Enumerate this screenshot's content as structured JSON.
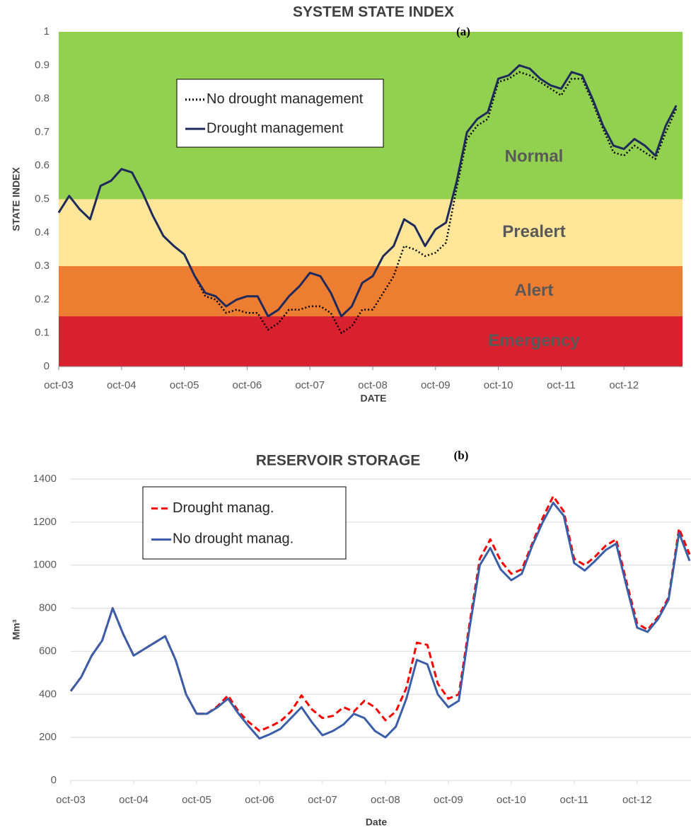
{
  "chart_data": [
    {
      "type": "line",
      "title": "SYSTEM STATE INDEX",
      "annotation": "(a)",
      "x_label": "DATE",
      "y_label": "STATE INDEX",
      "categories": [
        "oct-03",
        null,
        null,
        null,
        null,
        null,
        "oct-04",
        null,
        null,
        null,
        null,
        null,
        "oct-05",
        null,
        null,
        null,
        null,
        null,
        "oct-06",
        null,
        null,
        null,
        null,
        null,
        "oct-07",
        null,
        null,
        null,
        null,
        null,
        "oct-08",
        null,
        null,
        null,
        null,
        null,
        "oct-09",
        null,
        null,
        null,
        null,
        null,
        "oct-10",
        null,
        null,
        null,
        null,
        null,
        "oct-11",
        null,
        null,
        null,
        null,
        null,
        "oct-12",
        null,
        null,
        null,
        null,
        null
      ],
      "ylim": [
        0,
        1
      ],
      "yticks": [
        0,
        0.1,
        0.2,
        0.3,
        0.4,
        0.5,
        0.6,
        0.7,
        0.8,
        0.9,
        1
      ],
      "grid": false,
      "bands": [
        {
          "label": "Normal",
          "from": 0.5,
          "to": 1,
          "color": "#92d050"
        },
        {
          "label": "Prealert",
          "from": 0.3,
          "to": 0.5,
          "color": "#ffe699"
        },
        {
          "label": "Alert",
          "from": 0.15,
          "to": 0.3,
          "color": "#ed7d31"
        },
        {
          "label": "Emergency",
          "from": 0,
          "to": 0.15,
          "color": "#d9202f"
        }
      ],
      "series": [
        {
          "name": "No drought management",
          "color": "#000000",
          "line_style": "dotted",
          "values": [
            0.46,
            0.51,
            0.47,
            0.44,
            0.54,
            0.555,
            0.59,
            0.58,
            0.52,
            0.45,
            0.39,
            0.36,
            0.335,
            0.27,
            0.21,
            0.2,
            0.16,
            0.17,
            0.16,
            0.16,
            0.11,
            0.13,
            0.17,
            0.17,
            0.18,
            0.18,
            0.16,
            0.1,
            0.12,
            0.17,
            0.17,
            0.22,
            0.27,
            0.36,
            0.35,
            0.33,
            0.34,
            0.37,
            0.53,
            0.68,
            0.72,
            0.74,
            0.85,
            0.86,
            0.88,
            0.87,
            0.85,
            0.83,
            0.81,
            0.86,
            0.86,
            0.79,
            0.71,
            0.64,
            0.63,
            0.66,
            0.64,
            0.62,
            0.7,
            0.77
          ]
        },
        {
          "name": "Drought management",
          "color": "#1f2a5c",
          "line_style": "solid",
          "values": [
            0.46,
            0.51,
            0.47,
            0.44,
            0.54,
            0.555,
            0.59,
            0.58,
            0.52,
            0.45,
            0.39,
            0.36,
            0.335,
            0.27,
            0.22,
            0.21,
            0.18,
            0.2,
            0.21,
            0.21,
            0.15,
            0.17,
            0.21,
            0.24,
            0.28,
            0.27,
            0.22,
            0.15,
            0.18,
            0.25,
            0.27,
            0.33,
            0.36,
            0.44,
            0.42,
            0.36,
            0.41,
            0.43,
            0.55,
            0.7,
            0.74,
            0.76,
            0.86,
            0.87,
            0.9,
            0.89,
            0.86,
            0.84,
            0.83,
            0.88,
            0.87,
            0.8,
            0.72,
            0.66,
            0.65,
            0.68,
            0.66,
            0.63,
            0.72,
            0.78
          ]
        }
      ]
    },
    {
      "type": "line",
      "title": "RESERVOIR STORAGE",
      "annotation": "(b)",
      "x_label": "Date",
      "y_label": "Mm³",
      "categories": [
        "oct-03",
        null,
        null,
        null,
        null,
        null,
        "oct-04",
        null,
        null,
        null,
        null,
        null,
        "oct-05",
        null,
        null,
        null,
        null,
        null,
        "oct-06",
        null,
        null,
        null,
        null,
        null,
        "oct-07",
        null,
        null,
        null,
        null,
        null,
        "oct-08",
        null,
        null,
        null,
        null,
        null,
        "oct-09",
        null,
        null,
        null,
        null,
        null,
        "oct-10",
        null,
        null,
        null,
        null,
        null,
        "oct-11",
        null,
        null,
        null,
        null,
        null,
        "oct-12",
        null,
        null,
        null,
        null,
        null
      ],
      "ylim": [
        0,
        1400
      ],
      "yticks": [
        0,
        200,
        400,
        600,
        800,
        1000,
        1200,
        1400
      ],
      "grid": true,
      "series": [
        {
          "name": "Drought manag.",
          "color": "#ff0000",
          "line_style": "dashed",
          "values": [
            415,
            480,
            580,
            650,
            800,
            680,
            580,
            610,
            640,
            670,
            560,
            400,
            310,
            310,
            345,
            395,
            320,
            270,
            230,
            250,
            275,
            320,
            395,
            330,
            290,
            300,
            340,
            320,
            370,
            340,
            280,
            320,
            430,
            640,
            630,
            450,
            380,
            400,
            720,
            1030,
            1120,
            1020,
            960,
            980,
            1100,
            1220,
            1320,
            1250,
            1030,
            1000,
            1040,
            1090,
            1120,
            920,
            730,
            700,
            760,
            850,
            1170,
            1050
          ]
        },
        {
          "name": "No drought manag.",
          "color": "#3a5ea8",
          "line_style": "solid",
          "values": [
            415,
            480,
            580,
            650,
            800,
            680,
            580,
            610,
            640,
            670,
            560,
            400,
            310,
            310,
            340,
            380,
            310,
            250,
            195,
            215,
            240,
            290,
            340,
            270,
            210,
            230,
            260,
            310,
            290,
            230,
            200,
            250,
            380,
            560,
            540,
            400,
            340,
            370,
            700,
            1000,
            1080,
            980,
            930,
            960,
            1090,
            1200,
            1290,
            1230,
            1010,
            975,
            1020,
            1070,
            1100,
            900,
            710,
            690,
            750,
            840,
            1150,
            1020
          ]
        }
      ]
    }
  ]
}
